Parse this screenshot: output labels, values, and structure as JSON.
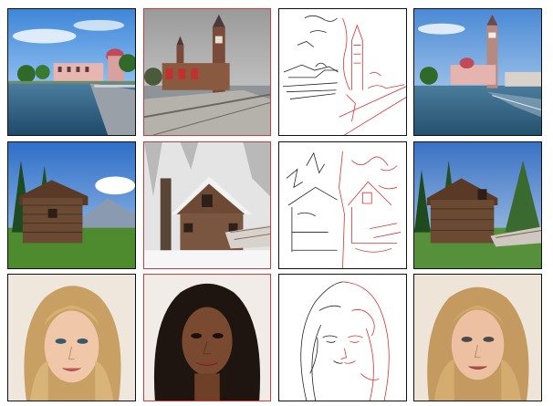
{
  "figure": {
    "rows": [
      {
        "id": "row-harbor",
        "cells": [
          {
            "role": "source",
            "frame": "black"
          },
          {
            "role": "style-reference",
            "frame": "red"
          },
          {
            "role": "edge-map",
            "frame": "black"
          },
          {
            "role": "result",
            "frame": "black"
          }
        ]
      },
      {
        "id": "row-cabin",
        "cells": [
          {
            "role": "source",
            "frame": "black"
          },
          {
            "role": "style-reference",
            "frame": "red"
          },
          {
            "role": "edge-map",
            "frame": "black"
          },
          {
            "role": "result",
            "frame": "black"
          }
        ]
      },
      {
        "id": "row-portrait",
        "cells": [
          {
            "role": "source",
            "frame": "black"
          },
          {
            "role": "style-reference",
            "frame": "red"
          },
          {
            "role": "edge-map",
            "frame": "black"
          },
          {
            "role": "result",
            "frame": "black"
          }
        ]
      }
    ],
    "colors": {
      "frame_black": "#111111",
      "frame_red": "#d23a3a",
      "edge_black": "#222222",
      "edge_red": "#e03030"
    }
  }
}
